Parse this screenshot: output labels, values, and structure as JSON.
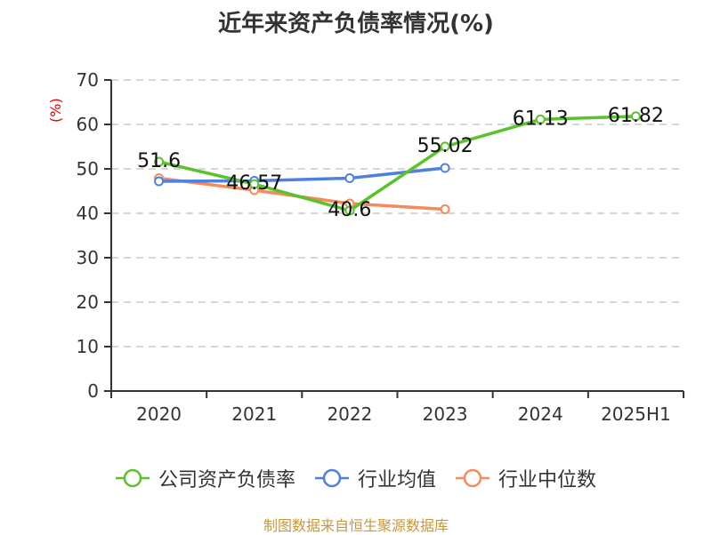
{
  "header": {
    "title": "近年来资产负债率情况(%)"
  },
  "axis": {
    "y_unit": "(%)"
  },
  "legend": {
    "items": [
      {
        "label": "公司资产负债率",
        "color": "#5bc22b"
      },
      {
        "label": "行业均值",
        "color": "#4f80de"
      },
      {
        "label": "行业中位数",
        "color": "#f58a5c"
      }
    ]
  },
  "footer": {
    "source": "制图数据来自恒生聚源数据库",
    "color": "#c8973a"
  },
  "chart_data": {
    "type": "line",
    "title": "近年来资产负债率情况(%)",
    "xlabel": "",
    "ylabel": "(%)",
    "categories": [
      "2020",
      "2021",
      "2022",
      "2023",
      "2024",
      "2025H1"
    ],
    "ylim": [
      0,
      70
    ],
    "yticks": [
      0,
      10,
      20,
      30,
      40,
      50,
      60,
      70
    ],
    "grid": true,
    "legend_position": "bottom",
    "series": [
      {
        "name": "公司资产负债率",
        "color": "#5bc22b",
        "values": [
          51.6,
          46.57,
          40.6,
          55.02,
          61.13,
          61.82
        ],
        "labels": [
          "51.6",
          "46.57",
          "40.6",
          "55.02",
          "61.13",
          "61.82"
        ]
      },
      {
        "name": "行业均值",
        "color": "#4f80de",
        "values": [
          47.2,
          47.3,
          47.9,
          50.2,
          null,
          null
        ]
      },
      {
        "name": "行业中位数",
        "color": "#f58a5c",
        "values": [
          47.9,
          45.2,
          42.2,
          40.9,
          null,
          null
        ]
      }
    ]
  }
}
